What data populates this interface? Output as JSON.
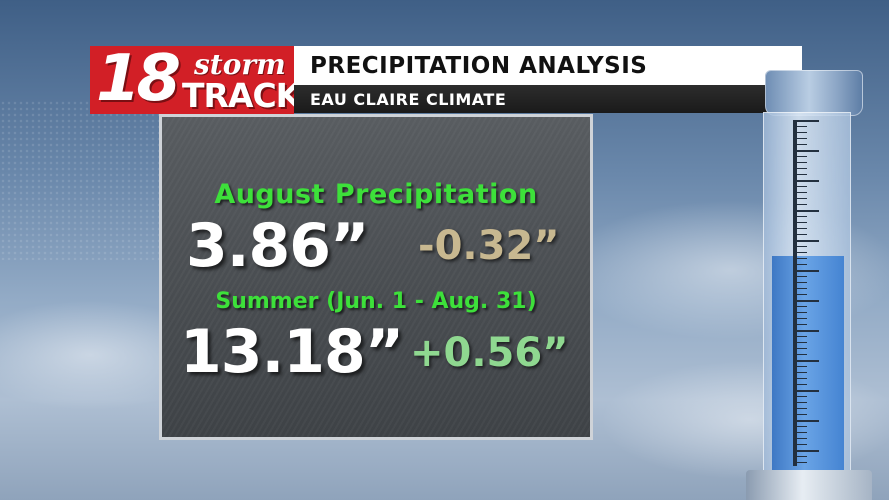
{
  "header": {
    "logo": {
      "number": "18",
      "word_top": "storm",
      "word_bottom": "TRACK"
    },
    "title": "PRECIPITATION ANALYSIS",
    "subtitle": "EAU CLAIRE CLIMATE"
  },
  "panel": {
    "august": {
      "label": "August Precipitation",
      "total": "3.86”",
      "departure": "-0.32”"
    },
    "summer": {
      "label": "Summer (Jun. 1 - Aug. 31)",
      "total": "13.18”",
      "departure": "+0.56”"
    }
  },
  "colors": {
    "logo_red": "#d21f26",
    "label_green": "#3de03a",
    "negative_departure": "#c8b890",
    "positive_departure": "#8fd890",
    "water_blue": "#4a88d4"
  },
  "decorations": {
    "gauge": "rain-gauge-icon",
    "gauge_fill_fraction": 0.6
  }
}
